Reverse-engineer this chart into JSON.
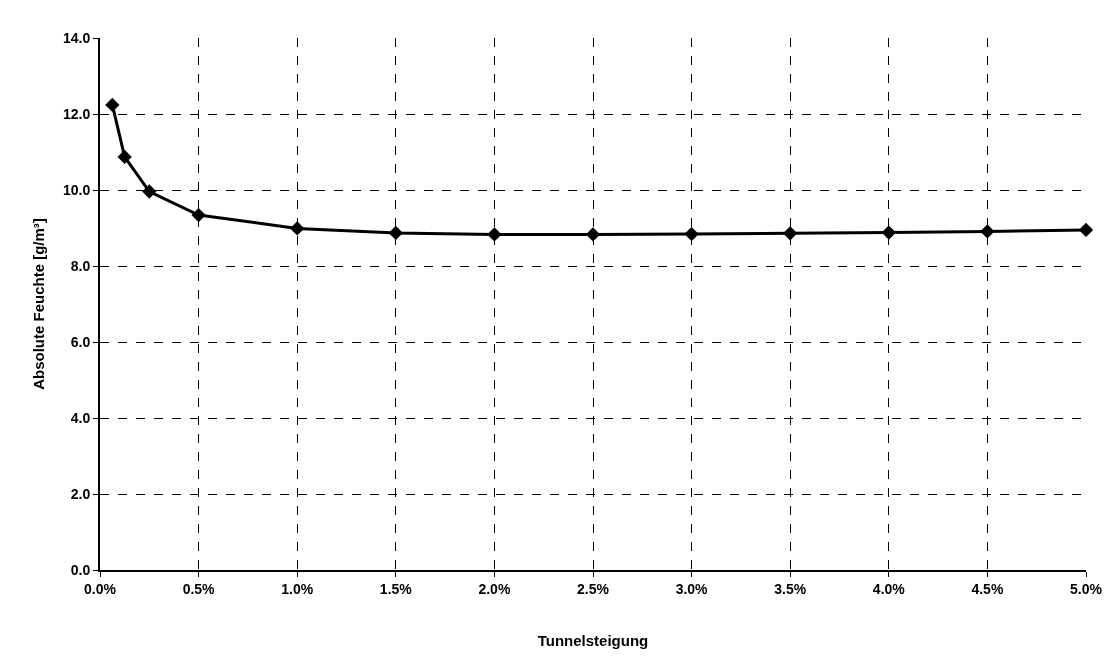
{
  "chart_data": {
    "type": "line",
    "xlabel": "Tunnelsteigung",
    "ylabel": "Absolute Feuchte [g/m³]",
    "x": [
      0.0625,
      0.125,
      0.25,
      0.5,
      1.0,
      1.5,
      2.0,
      2.5,
      3.0,
      3.5,
      4.0,
      4.5,
      5.0
    ],
    "series": [
      {
        "color": "#000000",
        "values": [
          12.24,
          10.87,
          9.96,
          9.34,
          8.99,
          8.87,
          8.83,
          8.83,
          8.84,
          8.86,
          8.88,
          8.91,
          8.95
        ]
      }
    ],
    "xlim": [
      0,
      5
    ],
    "ylim": [
      0,
      14
    ],
    "xticks": [
      {
        "value": 0,
        "label": "0.0%"
      },
      {
        "value": 0.5,
        "label": "0.5%"
      },
      {
        "value": 1,
        "label": "1.0%"
      },
      {
        "value": 1.5,
        "label": "1.5%"
      },
      {
        "value": 2,
        "label": "2.0%"
      },
      {
        "value": 2.5,
        "label": "2.5%"
      },
      {
        "value": 3,
        "label": "3.0%"
      },
      {
        "value": 3.5,
        "label": "3.5%"
      },
      {
        "value": 4,
        "label": "4.0%"
      },
      {
        "value": 4.5,
        "label": "4.5%"
      },
      {
        "value": 5,
        "label": "5.0%"
      }
    ],
    "yticks": [
      {
        "value": 0,
        "label": "0.0"
      },
      {
        "value": 2,
        "label": "2.0"
      },
      {
        "value": 4,
        "label": "4.0"
      },
      {
        "value": 6,
        "label": "6.0"
      },
      {
        "value": 8,
        "label": "8.0"
      },
      {
        "value": 10,
        "label": "10.0"
      },
      {
        "value": 12,
        "label": "12.0"
      },
      {
        "value": 14,
        "label": "14.0"
      }
    ],
    "grid": true,
    "marker": "diamond",
    "line_style": "solid"
  }
}
